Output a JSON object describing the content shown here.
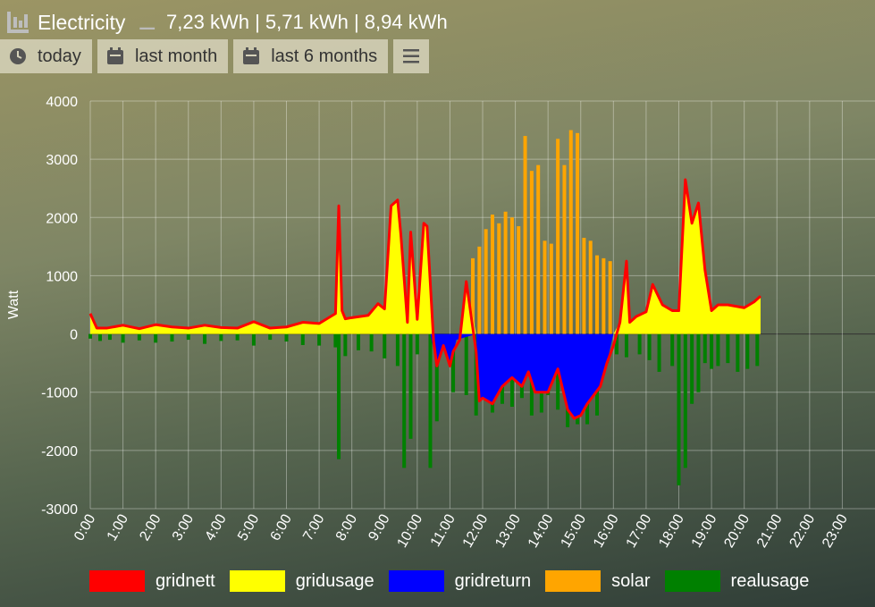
{
  "header": {
    "title": "Electricity",
    "stats": "7,23 kWh | 5,71 kWh | 8,94 kWh"
  },
  "buttons": [
    {
      "label": "today",
      "icon": "clock-icon"
    },
    {
      "label": "last month",
      "icon": "calendar-icon"
    },
    {
      "label": "last 6 months",
      "icon": "calendar-icon"
    },
    {
      "label": "",
      "icon": "menu-icon"
    }
  ],
  "chart_data": {
    "type": "area",
    "ylabel": "Watt",
    "xlabel": "",
    "ylim": [
      -3000,
      4000
    ],
    "yticks": [
      4000,
      3000,
      2000,
      1000,
      0,
      -1000,
      -2000,
      -3000
    ],
    "xlim": [
      0,
      24
    ],
    "xticks": [
      "0:00",
      "1:00",
      "2:00",
      "3:00",
      "4:00",
      "5:00",
      "6:00",
      "7:00",
      "8:00",
      "9:00",
      "10:00",
      "11:00",
      "12:00",
      "13:00",
      "14:00",
      "15:00",
      "16:00",
      "17:00",
      "18:00",
      "19:00",
      "20:00",
      "21:00",
      "22:00",
      "23:00"
    ],
    "grid": true,
    "legend_position": "bottom",
    "series": [
      {
        "name": "gridnett",
        "color": "#ff0000",
        "style": "line",
        "x": [
          0,
          0.2,
          0.5,
          1,
          1.5,
          2,
          2.5,
          3,
          3.5,
          4,
          4.5,
          5,
          5.5,
          6,
          6.5,
          7,
          7.5,
          7.6,
          7.7,
          7.8,
          8,
          8.5,
          8.8,
          9,
          9.2,
          9.4,
          9.5,
          9.7,
          9.8,
          10,
          10.2,
          10.3,
          10.5,
          10.6,
          10.8,
          11,
          11.1,
          11.3,
          11.5,
          11.8,
          11.9,
          12,
          12.3,
          12.6,
          12.9,
          13.2,
          13.4,
          13.6,
          14,
          14.3,
          14.6,
          14.8,
          15,
          15.2,
          15.6,
          15.8,
          16,
          16.2,
          16.4,
          16.5,
          16.7,
          17,
          17.2,
          17.5,
          17.8,
          18,
          18.2,
          18.4,
          18.6,
          18.8,
          19,
          19.2,
          19.5,
          20,
          20.3,
          20.5
        ],
        "y": [
          350,
          100,
          100,
          150,
          90,
          160,
          120,
          100,
          150,
          110,
          100,
          210,
          100,
          120,
          200,
          180,
          350,
          2200,
          400,
          260,
          280,
          320,
          520,
          430,
          2200,
          2300,
          1700,
          200,
          1750,
          250,
          1900,
          1850,
          -120,
          -550,
          -200,
          -550,
          -300,
          -100,
          900,
          -300,
          -1150,
          -1100,
          -1200,
          -900,
          -750,
          -900,
          -650,
          -1000,
          -1000,
          -600,
          -1300,
          -1450,
          -1400,
          -1200,
          -900,
          -500,
          -200,
          200,
          1250,
          200,
          300,
          380,
          850,
          500,
          400,
          400,
          2650,
          1900,
          2250,
          1100,
          400,
          500,
          500,
          450,
          550,
          650
        ]
      },
      {
        "name": "gridusage",
        "color": "#ffff00",
        "style": "area",
        "x": [
          0,
          0.2,
          0.5,
          1,
          1.5,
          2,
          2.5,
          3,
          3.5,
          4,
          4.5,
          5,
          5.5,
          6,
          6.5,
          7,
          7.5,
          7.6,
          7.7,
          7.8,
          8,
          8.5,
          8.8,
          9,
          9.2,
          9.4,
          9.5,
          9.7,
          9.8,
          10,
          10.2,
          10.3,
          10.5,
          10.6,
          10.8,
          11,
          11.1,
          11.3,
          11.5,
          11.8,
          11.9,
          12,
          12.3,
          12.6,
          12.9,
          13.2,
          13.4,
          13.6,
          14,
          14.3,
          14.6,
          14.8,
          15,
          15.2,
          15.6,
          15.8,
          16,
          16.2,
          16.4,
          16.5,
          16.7,
          17,
          17.2,
          17.5,
          17.8,
          18,
          18.2,
          18.4,
          18.6,
          18.8,
          19,
          19.2,
          19.5,
          20,
          20.3,
          20.5
        ],
        "y": [
          350,
          100,
          100,
          150,
          90,
          160,
          120,
          100,
          150,
          110,
          100,
          210,
          100,
          120,
          200,
          180,
          350,
          2200,
          400,
          260,
          280,
          320,
          520,
          430,
          2200,
          2300,
          1700,
          200,
          1750,
          250,
          1900,
          1850,
          0,
          0,
          0,
          0,
          0,
          0,
          900,
          0,
          0,
          0,
          0,
          0,
          0,
          0,
          0,
          0,
          0,
          0,
          0,
          0,
          0,
          0,
          0,
          0,
          0,
          200,
          1250,
          200,
          300,
          380,
          850,
          500,
          400,
          400,
          2650,
          1900,
          2250,
          1100,
          400,
          500,
          500,
          450,
          550,
          650
        ]
      },
      {
        "name": "gridreturn",
        "color": "#0000ff",
        "style": "area",
        "x": [
          10.4,
          10.6,
          10.8,
          11,
          11.2,
          11.8,
          11.9,
          12,
          12.3,
          12.6,
          12.9,
          13.2,
          13.4,
          13.6,
          14,
          14.3,
          14.6,
          14.8,
          15,
          15.2,
          15.6,
          15.8,
          16
        ],
        "y": [
          0,
          -550,
          -200,
          -550,
          -100,
          0,
          -1150,
          -1100,
          -1200,
          -900,
          -750,
          -900,
          -650,
          -1000,
          -1000,
          -600,
          -1300,
          -1450,
          -1400,
          -1200,
          -900,
          -500,
          0
        ]
      },
      {
        "name": "solar",
        "color": "#ffa500",
        "style": "bars",
        "x": [
          11.7,
          11.9,
          12.1,
          12.3,
          12.5,
          12.7,
          12.9,
          13.1,
          13.3,
          13.5,
          13.7,
          13.9,
          14.1,
          14.3,
          14.5,
          14.7,
          14.9,
          15.1,
          15.3,
          15.5,
          15.7,
          15.9
        ],
        "y": [
          1300,
          1500,
          1800,
          2050,
          1900,
          2100,
          2000,
          1850,
          3400,
          2800,
          2900,
          1600,
          1550,
          3350,
          2900,
          3500,
          3450,
          1650,
          1600,
          1350,
          1300,
          1250
        ]
      },
      {
        "name": "realusage",
        "color": "#008000",
        "style": "bars",
        "x": [
          0,
          0.3,
          0.6,
          1,
          1.5,
          2,
          2.5,
          3,
          3.5,
          4,
          4.5,
          5,
          5.5,
          6,
          6.5,
          7,
          7.5,
          7.6,
          7.8,
          8.2,
          8.6,
          9,
          9.4,
          9.6,
          9.8,
          10,
          10.4,
          10.6,
          10.9,
          11.1,
          11.5,
          11.8,
          12,
          12.3,
          12.6,
          12.9,
          13.2,
          13.5,
          13.8,
          14,
          14.3,
          14.6,
          14.9,
          15.2,
          15.5,
          15.8,
          16.1,
          16.4,
          16.8,
          17.1,
          17.4,
          17.8,
          18,
          18.2,
          18.4,
          18.6,
          18.8,
          19,
          19.2,
          19.5,
          19.8,
          20.1,
          20.4
        ],
        "y": [
          -80,
          -120,
          -100,
          -150,
          -110,
          -150,
          -130,
          -100,
          -170,
          -120,
          -110,
          -200,
          -100,
          -130,
          -190,
          -200,
          -230,
          -2150,
          -380,
          -280,
          -300,
          -420,
          -550,
          -2300,
          -1800,
          -350,
          -2300,
          -1500,
          -350,
          -1000,
          -1050,
          -1400,
          -1100,
          -1350,
          -1200,
          -1250,
          -1100,
          -1400,
          -1350,
          -1050,
          -1300,
          -1600,
          -1550,
          -1550,
          -1400,
          -500,
          -350,
          -400,
          -350,
          -450,
          -650,
          -550,
          -2600,
          -2300,
          -1200,
          -1000,
          -500,
          -600,
          -550,
          -500,
          -650,
          -600,
          -550
        ]
      }
    ]
  }
}
